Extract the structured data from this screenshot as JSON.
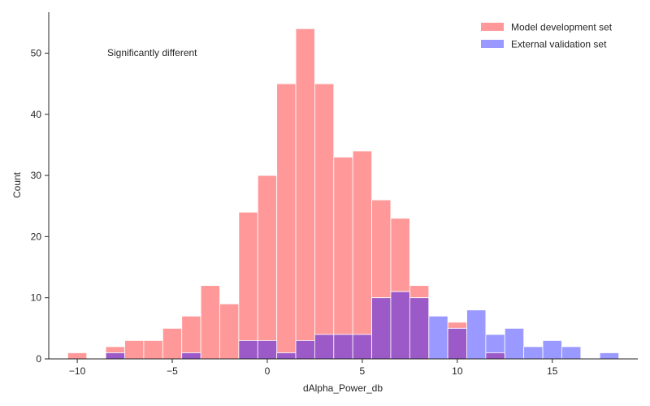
{
  "chart_data": {
    "type": "bar",
    "xlabel": "dAlpha_Power_db",
    "ylabel": "Count",
    "annotation": "Significantly different",
    "xlim": [
      -11.5,
      19.5
    ],
    "ylim": [
      0,
      56.7
    ],
    "xticks": [
      -10,
      -5,
      0,
      5,
      10,
      15
    ],
    "xtick_labels": [
      "−10",
      "−5",
      "0",
      "5",
      "10",
      "15"
    ],
    "yticks": [
      0,
      10,
      20,
      30,
      40,
      50
    ],
    "grid": false,
    "legend_position": "top-right",
    "bin_start": -10.5,
    "bin_width": 1,
    "series": [
      {
        "name": "Model development set",
        "color": "#ff9999",
        "values": [
          1,
          0,
          2,
          3,
          3,
          5,
          7,
          12,
          9,
          24,
          30,
          45,
          54,
          45,
          33,
          34,
          26,
          23,
          12,
          0,
          6,
          0,
          1,
          0,
          0,
          0,
          0,
          0,
          0
        ]
      },
      {
        "name": "External validation set",
        "color": "#9999ff",
        "values": [
          0,
          0,
          1,
          0,
          0,
          0,
          1,
          0,
          0,
          3,
          3,
          1,
          3,
          4,
          4,
          4,
          10,
          11,
          10,
          7,
          5,
          8,
          4,
          5,
          2,
          3,
          2,
          0,
          1
        ]
      }
    ],
    "overlap_color": "#9b5ac7"
  }
}
